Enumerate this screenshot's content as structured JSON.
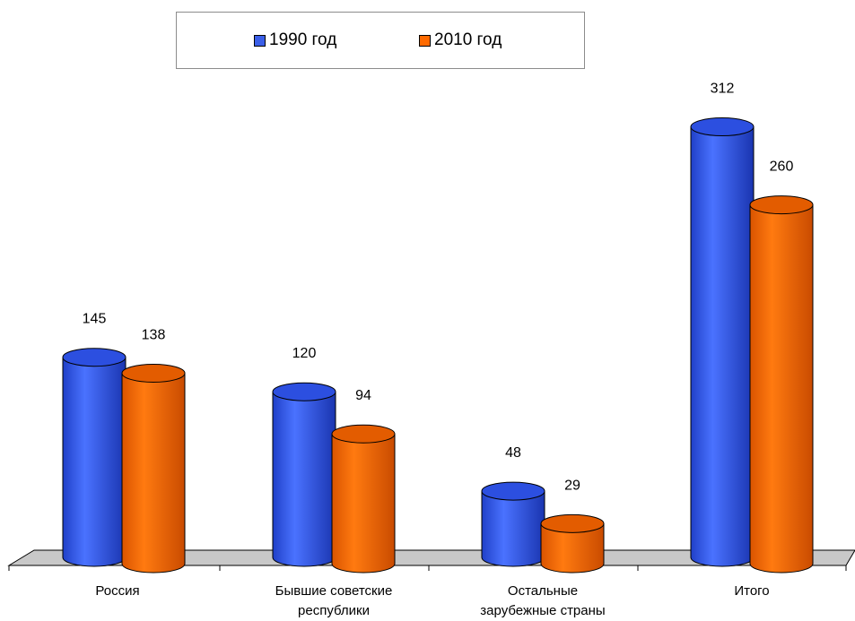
{
  "chart_data": {
    "type": "bar",
    "style": "3d-cylinder",
    "categories": [
      "Россия",
      "Бывшие советские республики",
      "Остальные зарубежные страны",
      "Итого"
    ],
    "category_lines": [
      [
        "Россия"
      ],
      [
        "Бывшие советские",
        "республики"
      ],
      [
        "Остальные",
        "зарубежные страны"
      ],
      [
        "Итого"
      ]
    ],
    "series": [
      {
        "name": "1990 год",
        "values": [
          145,
          120,
          48,
          312
        ],
        "color": "#3b5fe8"
      },
      {
        "name": "2010 год",
        "values": [
          138,
          94,
          29,
          260
        ],
        "color": "#ff6a00"
      }
    ],
    "data_labels": true,
    "legend_position": "top",
    "grid": false
  }
}
